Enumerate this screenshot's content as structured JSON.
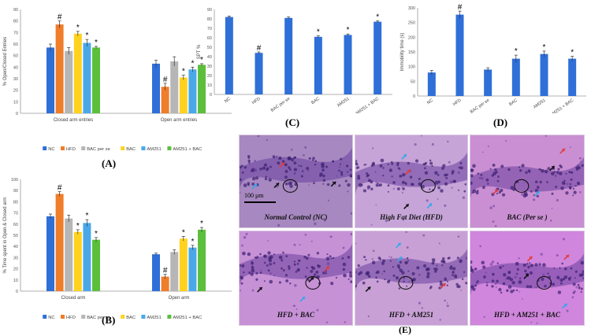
{
  "chart_data": [
    {
      "type": "bar",
      "panel": "(A)",
      "ylabel": "% Open/Closed Entries",
      "ylim": [
        0,
        90
      ],
      "yticks": [
        0,
        10,
        20,
        30,
        40,
        50,
        60,
        70,
        80,
        90
      ],
      "yticklabels": [
        "0",
        "10",
        "20",
        "30",
        "40",
        "50",
        "60",
        "70",
        "80",
        "90"
      ],
      "groups": [
        "Closed arm entries",
        "Open arm entries"
      ],
      "series": [
        {
          "name": "NC",
          "color": "#2f6fd8",
          "values": [
            57,
            43
          ],
          "errors": [
            3,
            3
          ],
          "marks": [
            "",
            ""
          ]
        },
        {
          "name": "HFD",
          "color": "#f07d2a",
          "values": [
            77,
            23
          ],
          "errors": [
            3,
            3
          ],
          "marks": [
            "#",
            "#"
          ]
        },
        {
          "name": "BAC per se",
          "color": "#b6b6b6",
          "values": [
            54,
            45
          ],
          "errors": [
            3,
            4
          ],
          "marks": [
            "",
            ""
          ]
        },
        {
          "name": "BAC",
          "color": "#ffd21f",
          "values": [
            69,
            31
          ],
          "errors": [
            2,
            2
          ],
          "marks": [
            "*",
            "*"
          ]
        },
        {
          "name": "AM251",
          "color": "#4aa8e8",
          "values": [
            61,
            38
          ],
          "errors": [
            3,
            2
          ],
          "marks": [
            "*",
            "*"
          ]
        },
        {
          "name": "AM251 + BAC",
          "color": "#5cbf3c",
          "values": [
            57,
            42
          ],
          "errors": [
            1,
            1
          ],
          "marks": [
            "*",
            "*"
          ]
        }
      ],
      "grid": false,
      "legend": "bottom"
    },
    {
      "type": "bar",
      "panel": "(B)",
      "ylabel": "% Time spent in Open & Closed arm",
      "ylim": [
        0,
        100
      ],
      "yticks": [
        0,
        10,
        20,
        30,
        40,
        50,
        60,
        70,
        80,
        90,
        100
      ],
      "yticklabels": [
        "0",
        "10",
        "20",
        "30",
        "40",
        "50",
        "60",
        "70",
        "80",
        "90",
        "100"
      ],
      "groups": [
        "Closed arm",
        "Open arm"
      ],
      "series": [
        {
          "name": "NC",
          "color": "#2f6fd8",
          "values": [
            67,
            33
          ],
          "errors": [
            2,
            1
          ],
          "marks": [
            "",
            ""
          ]
        },
        {
          "name": "HFD",
          "color": "#f07d2a",
          "values": [
            87,
            13
          ],
          "errors": [
            2,
            2
          ],
          "marks": [
            "#",
            "#"
          ]
        },
        {
          "name": "BAC per se",
          "color": "#b6b6b6",
          "values": [
            65,
            35
          ],
          "errors": [
            3,
            2
          ],
          "marks": [
            "",
            ""
          ]
        },
        {
          "name": "BAC",
          "color": "#ffd21f",
          "values": [
            53,
            47
          ],
          "errors": [
            2,
            2
          ],
          "marks": [
            "*",
            "*"
          ]
        },
        {
          "name": "AM251",
          "color": "#4aa8e8",
          "values": [
            61,
            39
          ],
          "errors": [
            3,
            2
          ],
          "marks": [
            "*",
            "*"
          ]
        },
        {
          "name": "AM251 + BAC",
          "color": "#5cbf3c",
          "values": [
            46,
            55
          ],
          "errors": [
            2,
            2
          ],
          "marks": [
            "*",
            "*"
          ]
        }
      ],
      "grid": false,
      "legend": "bottom"
    },
    {
      "type": "bar",
      "panel": "(C)",
      "ylabel": "SPT %",
      "ylim": [
        0,
        90
      ],
      "yticks": [
        0,
        10,
        20,
        30,
        40,
        50,
        60,
        70,
        80,
        90
      ],
      "yticklabels": [
        "0",
        "10",
        "20",
        "30",
        "40",
        "50",
        "60",
        "70",
        "80",
        "90"
      ],
      "categories": [
        "NC",
        "HFD",
        "BAC per se",
        "BAC",
        "AM251",
        "AM251 + BAC"
      ],
      "values": [
        82,
        44,
        81,
        61,
        63,
        77
      ],
      "errors": [
        1,
        1,
        1,
        1,
        1,
        1
      ],
      "marks": [
        "",
        "#",
        "",
        "*",
        "*",
        "*"
      ],
      "color": "#2f6fd8",
      "grid": false
    },
    {
      "type": "bar",
      "panel": "(D)",
      "ylabel": "Immobility time (s)",
      "ylim": [
        0,
        300
      ],
      "yticks": [
        0,
        50,
        100,
        150,
        200,
        250,
        300
      ],
      "yticklabels": [
        "0",
        "50",
        "100",
        "150",
        "200",
        "250",
        "300"
      ],
      "categories": [
        "NC",
        "HFD",
        "BAC per se",
        "BAC",
        "AM251",
        "AM251 + BAC"
      ],
      "values": [
        80,
        277,
        90,
        127,
        143,
        127
      ],
      "errors": [
        7,
        12,
        6,
        12,
        10,
        8
      ],
      "marks": [
        "",
        "#",
        "",
        "*",
        "*",
        "*"
      ],
      "color": "#2f6fd8",
      "grid": false
    }
  ],
  "histology": {
    "panel": "(E)",
    "scale_label": "100 μm",
    "images": [
      {
        "caption": "Normal Control (NC)",
        "tone": "#a788c0"
      },
      {
        "caption": "High Fat Diet (HFD)",
        "tone": "#c6a4d8"
      },
      {
        "caption": "BAC (Per se )",
        "tone": "#c98fd2"
      },
      {
        "caption": "HFD + BAC",
        "tone": "#c791d6"
      },
      {
        "caption": "HFD + AM251",
        "tone": "#c8a0d6"
      },
      {
        "caption": "HFD + AM251 + BAC",
        "tone": "#cf86dc"
      }
    ]
  }
}
